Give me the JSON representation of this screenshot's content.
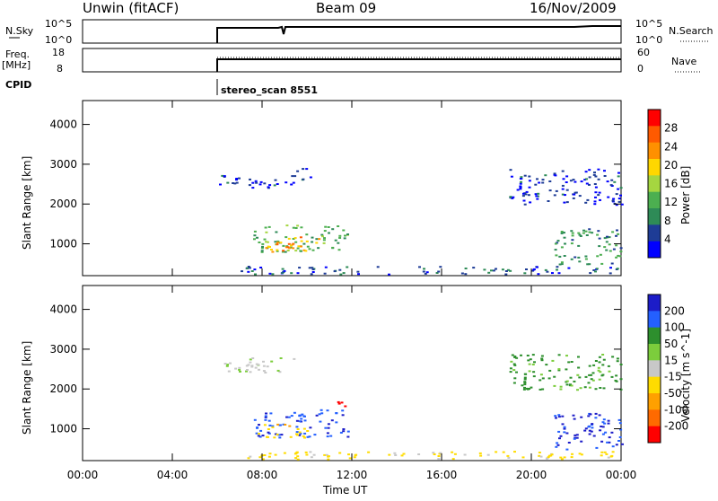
{
  "header": {
    "station": "Unwin (fitACF)",
    "beam": "Beam 09",
    "date": "16/Nov/2009"
  },
  "status_panels": {
    "nsky": {
      "label": "N.Sky",
      "ticks": [
        "10^5",
        "10^0"
      ]
    },
    "nsearch": {
      "label": "N.Search",
      "ticks": [
        "10^5",
        "10^0"
      ]
    },
    "freq": {
      "label": "Freq.",
      "unit": "[MHz]",
      "ticks": [
        "18",
        "8"
      ]
    },
    "nave": {
      "label": "Nave",
      "ticks": [
        "60",
        "0"
      ]
    },
    "cpid": {
      "label": "CPID",
      "value": "stereo_scan 8551"
    }
  },
  "colors": {
    "power_scale": [
      "#0000ff",
      "#1e3c96",
      "#2e8b57",
      "#4caf50",
      "#a5d640",
      "#ffd700",
      "#ff9000",
      "#ff5a00",
      "#ff0000"
    ],
    "velocity_scale": [
      "#1c1cc8",
      "#2460ff",
      "#2d8f2d",
      "#7ccd3c",
      "#c8c8c8",
      "#ffdc00",
      "#ffa000",
      "#ff6a00",
      "#ff0000"
    ]
  },
  "chart_data": [
    {
      "type": "heatmap",
      "name": "power",
      "ylabel": "Slant Range [km]",
      "yticks": [
        "1000",
        "2000",
        "3000",
        "4000"
      ],
      "ylim": [
        200,
        4600
      ],
      "xlim": [
        0,
        24
      ],
      "xticks": [
        "00:00",
        "04:00",
        "08:00",
        "12:00",
        "16:00",
        "20:00",
        "00:00"
      ],
      "colorbar": {
        "label": "Power [dB]",
        "ticks": [
          "4",
          "8",
          "12",
          "16",
          "20",
          "24",
          "28"
        ],
        "range": [
          0,
          32
        ]
      },
      "regions": [
        {
          "t0": 6.0,
          "t1": 9.4,
          "r0": 2400,
          "r1": 2750,
          "value": 4
        },
        {
          "t0": 9.4,
          "t1": 10.2,
          "r0": 2600,
          "r1": 2950,
          "value": 4
        },
        {
          "t0": 7.6,
          "t1": 11.8,
          "r0": 800,
          "r1": 1500,
          "value": 12
        },
        {
          "t0": 8.0,
          "t1": 10.5,
          "r0": 820,
          "r1": 1200,
          "value": 22
        },
        {
          "t0": 8.6,
          "t1": 9.6,
          "r0": 850,
          "r1": 1050,
          "value": 28
        },
        {
          "t0": 19.0,
          "t1": 24.0,
          "r0": 2000,
          "r1": 2900,
          "value": 4
        },
        {
          "t0": 21.0,
          "t1": 24.0,
          "r0": 500,
          "r1": 1400,
          "value": 10
        },
        {
          "t0": 7.0,
          "t1": 24.0,
          "r0": 250,
          "r1": 450,
          "value": 6
        }
      ]
    },
    {
      "type": "heatmap",
      "name": "velocity",
      "ylabel": "Slant Range [km]",
      "yticks": [
        "1000",
        "2000",
        "3000",
        "4000"
      ],
      "ylim": [
        200,
        4600
      ],
      "xlim": [
        0,
        24
      ],
      "xticks": [
        "00:00",
        "04:00",
        "08:00",
        "12:00",
        "16:00",
        "20:00",
        "00:00"
      ],
      "xlabel": "Time UT",
      "colorbar": {
        "label": "Velocity [m s^-1]",
        "ticks": [
          "200",
          "100",
          "50",
          "15",
          "-15",
          "-50",
          "-100",
          "-200"
        ],
        "range": [
          -250,
          250
        ]
      },
      "regions": [
        {
          "t0": 6.0,
          "t1": 9.4,
          "r0": 2400,
          "r1": 2800,
          "value": 20
        },
        {
          "t0": 7.6,
          "t1": 11.8,
          "r0": 800,
          "r1": 1500,
          "value": 180
        },
        {
          "t0": 7.8,
          "t1": 10.0,
          "r0": 780,
          "r1": 1150,
          "value": -60
        },
        {
          "t0": 11.0,
          "t1": 12.0,
          "r0": 1550,
          "r1": 1700,
          "value": -220
        },
        {
          "t0": 19.0,
          "t1": 24.0,
          "r0": 2000,
          "r1": 2900,
          "value": 100
        },
        {
          "t0": 21.0,
          "t1": 24.0,
          "r0": 500,
          "r1": 1400,
          "value": 200
        },
        {
          "t0": 7.0,
          "t1": 24.0,
          "r0": 250,
          "r1": 450,
          "value": -40
        }
      ]
    }
  ]
}
